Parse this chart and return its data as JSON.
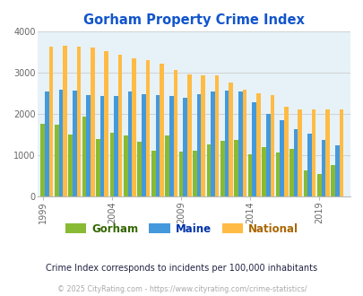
{
  "title": "Gorham Property Crime Index",
  "title_color": "#1155cc",
  "subtitle": "Crime Index corresponds to incidents per 100,000 inhabitants",
  "subtitle_color": "#222244",
  "copyright": "© 2025 CityRating.com - https://www.cityrating.com/crime-statistics/",
  "copyright_color": "#aaaaaa",
  "years": [
    1999,
    2000,
    2001,
    2002,
    2003,
    2004,
    2005,
    2006,
    2007,
    2008,
    2009,
    2010,
    2011,
    2012,
    2013,
    2014,
    2015,
    2016,
    2017,
    2018,
    2019,
    2020
  ],
  "gorham": [
    1760,
    1740,
    1510,
    1930,
    1400,
    1540,
    1470,
    1320,
    1110,
    1480,
    1090,
    1110,
    1260,
    1340,
    1360,
    1010,
    1200,
    1070,
    1150,
    630,
    540,
    760
  ],
  "maine": [
    2550,
    2590,
    2560,
    2470,
    2440,
    2440,
    2540,
    2480,
    2470,
    2440,
    2390,
    2480,
    2550,
    2560,
    2540,
    2290,
    2000,
    1840,
    1640,
    1520,
    1360,
    1240
  ],
  "national": [
    3630,
    3660,
    3630,
    3610,
    3530,
    3440,
    3360,
    3310,
    3230,
    3060,
    2970,
    2940,
    2930,
    2760,
    2600,
    2500,
    2470,
    2180,
    2100,
    2100,
    2100,
    2100
  ],
  "gorham_color": "#88bb33",
  "maine_color": "#4499dd",
  "national_color": "#ffbb44",
  "background_color": "#e6f2f8",
  "ylim": [
    0,
    4000
  ],
  "yticks": [
    0,
    1000,
    2000,
    3000,
    4000
  ],
  "tick_years": [
    1999,
    2004,
    2009,
    2014,
    2019
  ],
  "legend_labels": [
    "Gorham",
    "Maine",
    "National"
  ],
  "legend_label_colors": [
    "#336600",
    "#0033aa",
    "#aa6600"
  ]
}
